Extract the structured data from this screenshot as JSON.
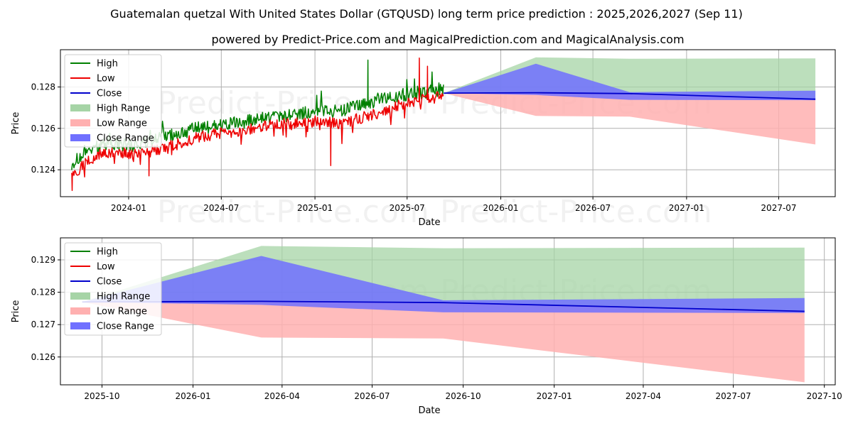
{
  "title": "Guatemalan quetzal With United States Dollar (GTQUSD) long term price prediction : 2025,2026,2027 (Sep 11)",
  "subtitle": "powered by Predict-Price.com and MagicalPrediction.com and MagicalAnalysis.com",
  "watermark": "Predict-Price.com",
  "colors": {
    "high": "#008000",
    "low": "#ee0000",
    "close": "#0000cc",
    "high_range": "#a6d4a6",
    "low_range": "#ffb0b0",
    "close_range": "#7070ff"
  },
  "chart_data": [
    {
      "type": "line",
      "xlabel": "Date",
      "ylabel": "Price",
      "xlim": [
        "2023-08-20",
        "2027-10-20"
      ],
      "ylim": [
        0.1227,
        0.1298
      ],
      "x_ticks": [
        "2024-01",
        "2024-07",
        "2025-01",
        "2025-07",
        "2026-01",
        "2026-07",
        "2027-01",
        "2027-07"
      ],
      "y_ticks": [
        "0.124",
        "0.126",
        "0.128"
      ],
      "grid": true,
      "legend": {
        "position": "top-left",
        "entries": [
          "High",
          "Low",
          "Close",
          "High Range",
          "Low Range",
          "Close Range"
        ]
      },
      "history_x": [
        "2023-09-11",
        "2023-10-15",
        "2023-11-15",
        "2023-12-15",
        "2024-01-15",
        "2024-02-15",
        "2024-03-15",
        "2024-04-15",
        "2024-05-15",
        "2024-06-15",
        "2024-07-15",
        "2024-08-15",
        "2024-09-15",
        "2024-10-15",
        "2024-11-15",
        "2024-12-15",
        "2025-01-15",
        "2025-02-15",
        "2025-03-15",
        "2025-04-15",
        "2025-05-15",
        "2025-06-15",
        "2025-07-15",
        "2025-08-15",
        "2025-09-11"
      ],
      "series": [
        {
          "name": "High",
          "values": [
            0.1243,
            0.1249,
            0.1253,
            0.1252,
            0.1252,
            0.1254,
            0.1256,
            0.1258,
            0.126,
            0.1261,
            0.1262,
            0.1263,
            0.1265,
            0.1266,
            0.1266,
            0.1268,
            0.1269,
            0.1268,
            0.127,
            0.1272,
            0.1274,
            0.1276,
            0.1277,
            0.1278,
            0.1279
          ]
        },
        {
          "name": "Low",
          "values": [
            0.1237,
            0.1245,
            0.1248,
            0.1248,
            0.1248,
            0.1249,
            0.1251,
            0.1253,
            0.1256,
            0.1257,
            0.1258,
            0.1259,
            0.1261,
            0.1262,
            0.1262,
            0.1263,
            0.1264,
            0.1262,
            0.1264,
            0.1266,
            0.1268,
            0.1271,
            0.1273,
            0.1274,
            0.1276
          ]
        }
      ],
      "history_spikes": [
        {
          "series": "High",
          "x": "2025-04-15",
          "value": 0.1293
        },
        {
          "series": "Low",
          "x": "2025-07-25",
          "value": 0.1294
        },
        {
          "series": "Low",
          "x": "2025-08-10",
          "value": 0.129
        },
        {
          "series": "Low",
          "x": "2025-02-01",
          "value": 0.1242
        },
        {
          "series": "Low",
          "x": "2024-02-10",
          "value": 0.1237
        },
        {
          "series": "Low",
          "x": "2023-09-12",
          "value": 0.123
        }
      ],
      "forecast_x": [
        "2025-09-11",
        "2026-03-11",
        "2026-09-11",
        "2027-09-11"
      ],
      "close_forecast": [
        0.1277,
        0.12772,
        0.12768,
        0.12741
      ],
      "high_range": {
        "upper": [
          0.1277,
          0.12943,
          0.12936,
          0.12938
        ],
        "lower": [
          0.1277,
          0.12772,
          0.12768,
          0.12741
        ]
      },
      "low_range": {
        "upper": [
          0.1277,
          0.12772,
          0.12768,
          0.12741
        ],
        "lower": [
          0.1277,
          0.1266,
          0.12657,
          0.12522
        ]
      },
      "close_range": {
        "upper": [
          0.1277,
          0.12912,
          0.12775,
          0.12782
        ],
        "lower": [
          0.1277,
          0.12761,
          0.12738,
          0.12736
        ]
      }
    },
    {
      "type": "line",
      "xlabel": "Date",
      "ylabel": "Price",
      "xlim": [
        "2025-08-20",
        "2027-10-12"
      ],
      "ylim": [
        0.12514,
        0.12968
      ],
      "x_ticks": [
        "2025-10",
        "2026-01",
        "2026-04",
        "2026-07",
        "2026-10",
        "2027-01",
        "2027-04",
        "2027-07",
        "2027-10"
      ],
      "y_ticks": [
        "0.126",
        "0.127",
        "0.128",
        "0.129"
      ],
      "grid": true,
      "legend": {
        "position": "top-left",
        "entries": [
          "High",
          "Low",
          "Close",
          "High Range",
          "Low Range",
          "Close Range"
        ]
      },
      "forecast_x": [
        "2025-09-11",
        "2026-03-11",
        "2026-09-11",
        "2027-09-11"
      ],
      "close_forecast": [
        0.1277,
        0.12772,
        0.12768,
        0.12741
      ],
      "high_range": {
        "upper": [
          0.1277,
          0.12943,
          0.12936,
          0.12938
        ],
        "lower": [
          0.1277,
          0.12772,
          0.12768,
          0.12741
        ]
      },
      "low_range": {
        "upper": [
          0.1277,
          0.12772,
          0.12768,
          0.12741
        ],
        "lower": [
          0.1277,
          0.1266,
          0.12657,
          0.12522
        ]
      },
      "close_range": {
        "upper": [
          0.1277,
          0.12912,
          0.12775,
          0.12782
        ],
        "lower": [
          0.1277,
          0.12761,
          0.12738,
          0.12736
        ]
      }
    }
  ]
}
